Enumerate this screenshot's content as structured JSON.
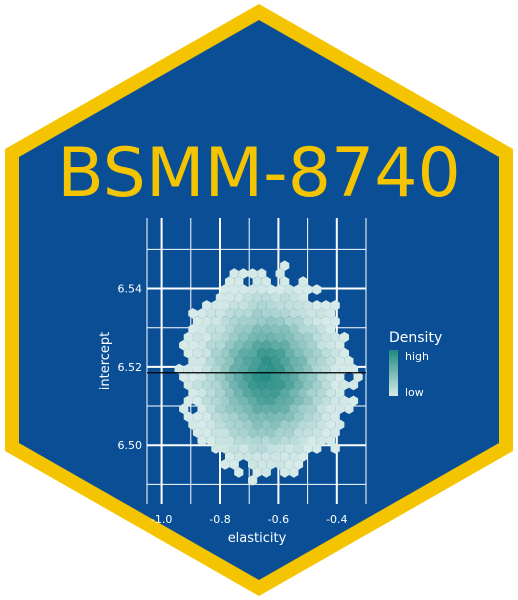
{
  "title": "BSMM-8740",
  "colors": {
    "hex_border": "#f5c400",
    "hex_fill": "#0a4f96",
    "grid": "#ffffff",
    "density_low": "#d6eae8",
    "density_high": "#1f8a80"
  },
  "chart_data": {
    "type": "heatmap",
    "geom": "hexbin",
    "xlabel": "elasticity",
    "ylabel": "intercept",
    "xlim": [
      -1.05,
      -0.3
    ],
    "ylim": [
      6.485,
      6.558
    ],
    "x_ticks": [
      -1.0,
      -0.8,
      -0.6,
      -0.4
    ],
    "x_tick_labels": [
      "-1.0",
      "-0.8",
      "-0.6",
      "-0.4"
    ],
    "y_ticks": [
      6.5,
      6.52,
      6.54
    ],
    "y_tick_labels": [
      "6.50",
      "6.52",
      "6.54"
    ],
    "reference_line_y": 6.5185,
    "density_center": {
      "x": -0.64,
      "y": 6.518
    },
    "grid": true,
    "legend": {
      "title": "Density",
      "high_label": "high",
      "low_label": "low",
      "placement": "right"
    }
  }
}
